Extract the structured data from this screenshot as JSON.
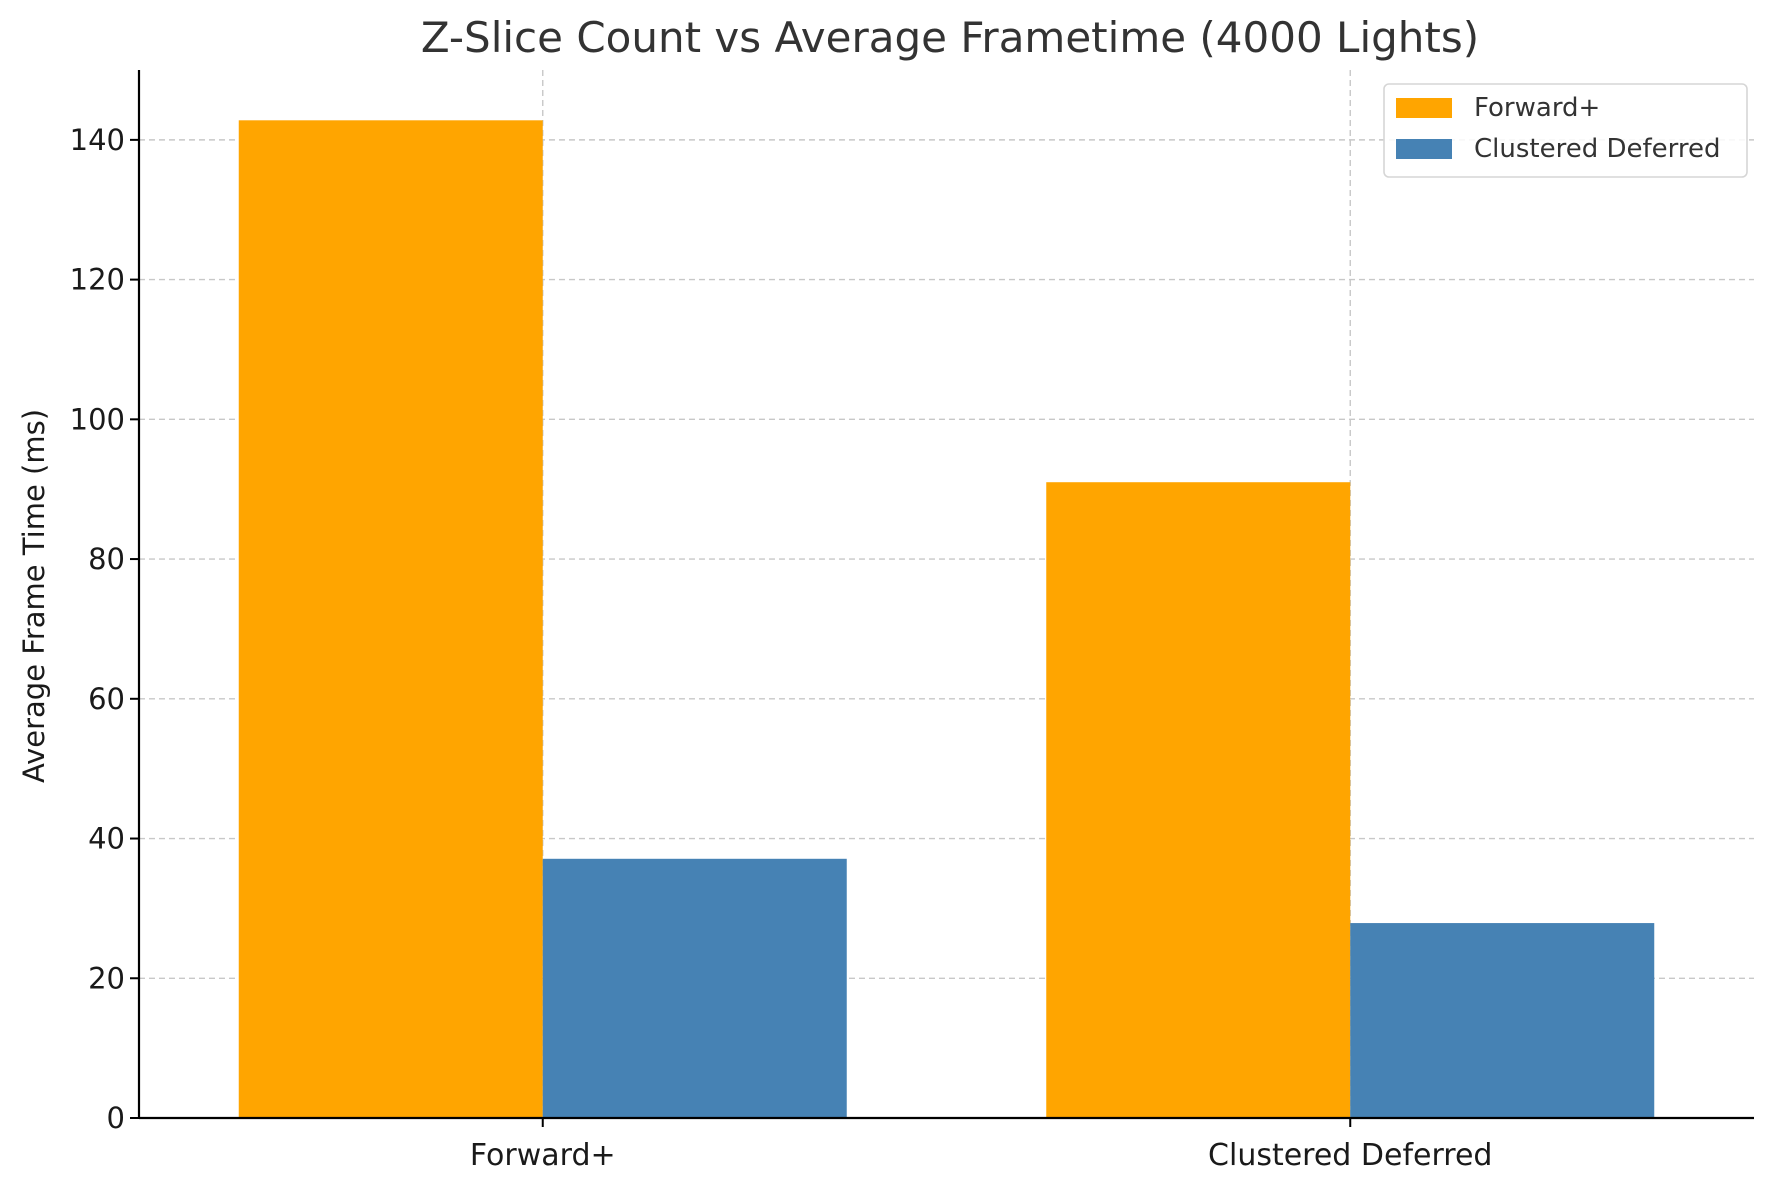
{
  "chart_data": {
    "type": "bar",
    "title": "Z-Slice Count vs Average Frametime (4000 Lights)",
    "xlabel": "",
    "ylabel": "Average Frame Time (ms)",
    "ylim": [
      0,
      150
    ],
    "yticks": [
      0,
      20,
      40,
      60,
      80,
      100,
      120,
      140
    ],
    "categories": [
      "Forward+",
      "Clustered Deferred"
    ],
    "series": [
      {
        "name": "Forward+",
        "values": [
          142.8,
          91.0
        ],
        "color": "#FFA500"
      },
      {
        "name": "Clustered Deferred",
        "values": [
          37.1,
          27.9
        ],
        "color": "#4682B4"
      }
    ],
    "grid": true,
    "legend_position": "top-right"
  }
}
